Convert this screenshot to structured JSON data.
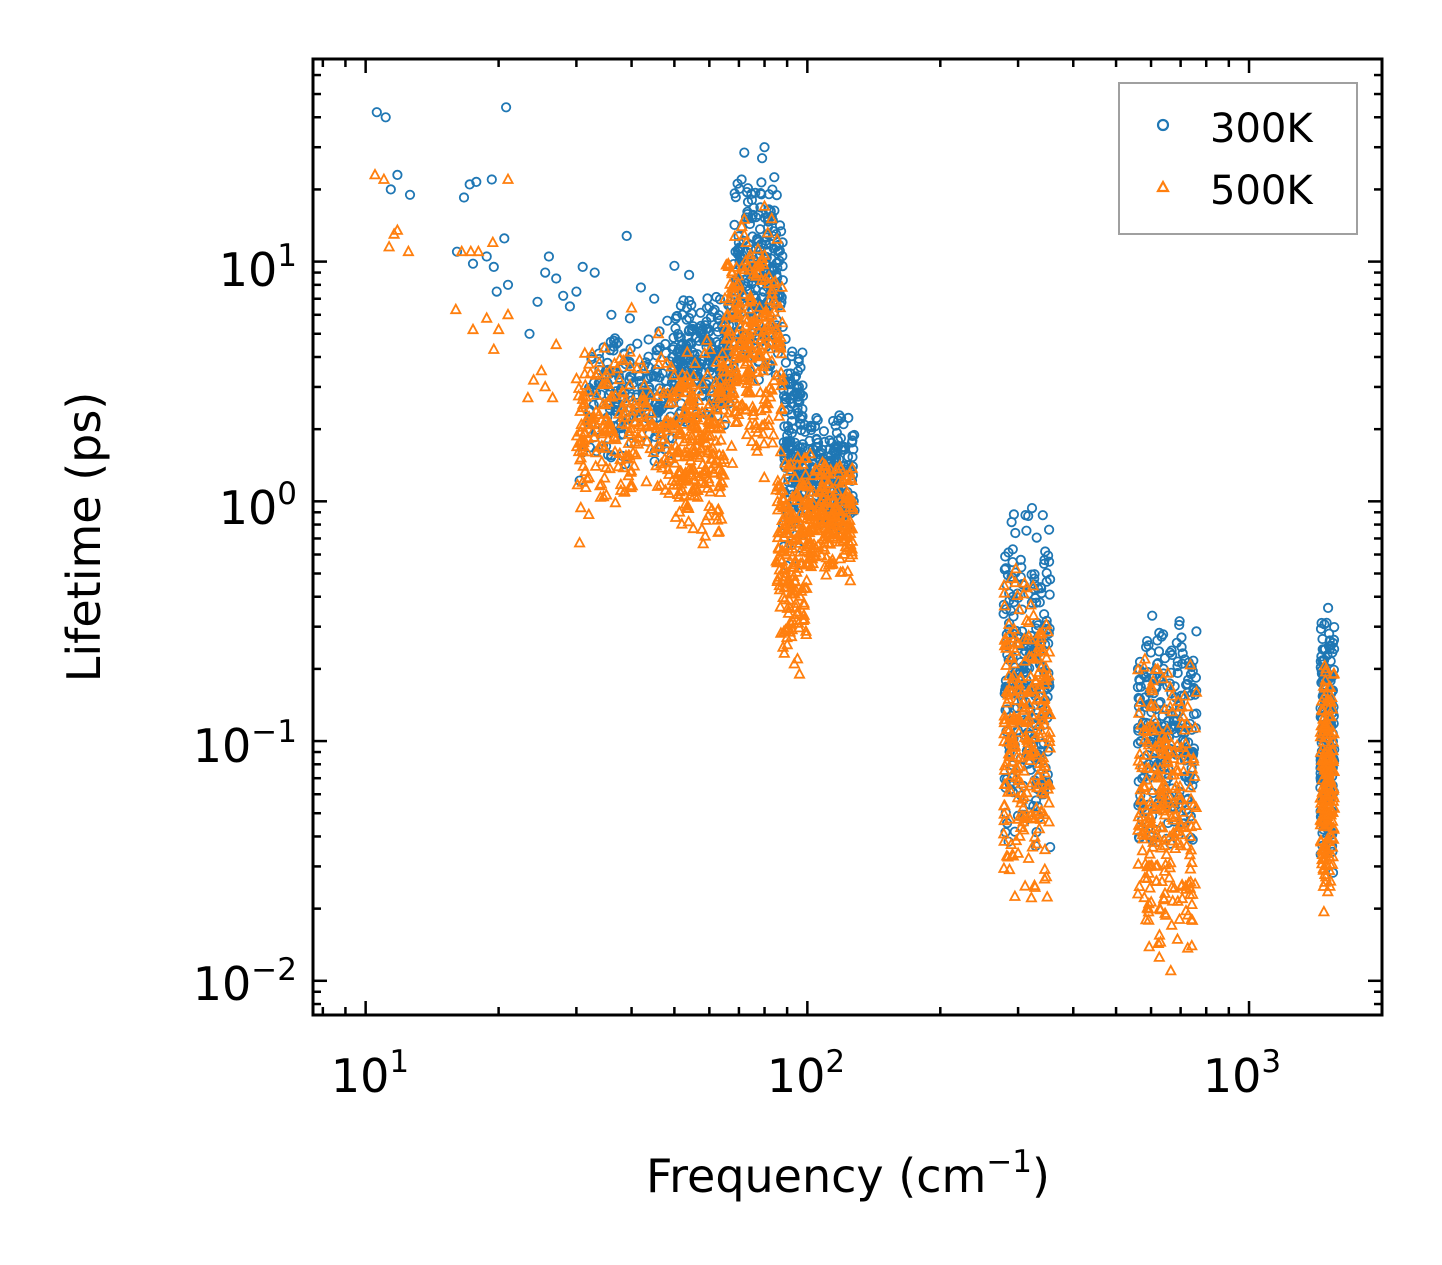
{
  "chart_data": {
    "type": "scatter",
    "xscale": "log",
    "yscale": "log",
    "xlabel": "Frequency (cm",
    "xlabel_sup": "−1",
    "xlabel_end": ")",
    "ylabel": "Lifetime (ps)",
    "xlim": [
      7.6,
      2000
    ],
    "ylim": [
      0.0072,
      70
    ],
    "x_ticks": [
      {
        "value": 10,
        "base": "10",
        "exp": "1"
      },
      {
        "value": 100,
        "base": "10",
        "exp": "2"
      },
      {
        "value": 1000,
        "base": "10",
        "exp": "3"
      }
    ],
    "y_ticks": [
      {
        "value": 0.01,
        "base": "10",
        "exp": "−2"
      },
      {
        "value": 0.1,
        "base": "10",
        "exp": "−1"
      },
      {
        "value": 1,
        "base": "10",
        "exp": "0"
      },
      {
        "value": 10,
        "base": "10",
        "exp": "1"
      }
    ],
    "legend_position": "top-right",
    "series": [
      {
        "name": "300K",
        "marker": "circle",
        "color": "#1f77b4",
        "clusters": [
          {
            "x": [
              32,
              50
            ],
            "y": [
              1.3,
              6
            ],
            "density": 0.8
          },
          {
            "x": [
              50,
              68
            ],
            "y": [
              2,
              8
            ],
            "density": 0.9
          },
          {
            "x": [
              68,
              88
            ],
            "y": [
              3,
              25
            ],
            "density": 1.0
          },
          {
            "x": [
              88,
              98
            ],
            "y": [
              0.5,
              5
            ],
            "density": 0.6
          },
          {
            "x": [
              98,
              128
            ],
            "y": [
              0.7,
              2.4
            ],
            "density": 0.8
          },
          {
            "x": [
              278,
              355
            ],
            "y": [
              0.03,
              1.1
            ],
            "density": 1.0
          },
          {
            "x": [
              560,
              760
            ],
            "y": [
              0.03,
              0.4
            ],
            "density": 1.0
          },
          {
            "x": [
              1450,
              1560
            ],
            "y": [
              0.025,
              0.42
            ],
            "density": 0.7
          }
        ],
        "sparse_points": [
          [
            10.6,
            42
          ],
          [
            11.1,
            40
          ],
          [
            11.4,
            20
          ],
          [
            11.8,
            23
          ],
          [
            12.6,
            19
          ],
          [
            20.8,
            44
          ],
          [
            16.7,
            18.5
          ],
          [
            17.2,
            21
          ],
          [
            17.8,
            21.5
          ],
          [
            19.3,
            22
          ],
          [
            20.6,
            12.5
          ],
          [
            16.1,
            11
          ],
          [
            17.5,
            9.8
          ],
          [
            18.8,
            10.5
          ],
          [
            19.5,
            9.5
          ],
          [
            19.8,
            7.5
          ],
          [
            21,
            8
          ],
          [
            23.5,
            5
          ],
          [
            24.5,
            6.8
          ],
          [
            25.5,
            9
          ],
          [
            26,
            10.5
          ],
          [
            27,
            8.5
          ],
          [
            28,
            7.2
          ],
          [
            29,
            6.5
          ],
          [
            30,
            7.5
          ],
          [
            31,
            9.5
          ],
          [
            33,
            9
          ],
          [
            36,
            6
          ],
          [
            39,
            12.8
          ],
          [
            42,
            7.8
          ],
          [
            45,
            7
          ],
          [
            50,
            9.6
          ],
          [
            54,
            8.8
          ],
          [
            72,
            28.5
          ],
          [
            80,
            30
          ],
          [
            79,
            27
          ],
          [
            71,
            22
          ],
          [
            73,
            19.5
          ],
          [
            30.5,
            1.22
          ],
          [
            31,
            1.6
          ],
          [
            32,
            2.2
          ],
          [
            35,
            3.5
          ]
        ]
      },
      {
        "name": "500K",
        "marker": "triangle",
        "color": "#ff7f0e",
        "clusters": [
          {
            "x": [
              30,
              50
            ],
            "y": [
              0.9,
              4.5
            ],
            "density": 0.9
          },
          {
            "x": [
              50,
              65
            ],
            "y": [
              0.65,
              5
            ],
            "density": 0.9
          },
          {
            "x": [
              65,
              88
            ],
            "y": [
              1.2,
              16
            ],
            "density": 1.0
          },
          {
            "x": [
              85,
              100
            ],
            "y": [
              0.2,
              1.8
            ],
            "density": 0.7
          },
          {
            "x": [
              100,
              127
            ],
            "y": [
              0.45,
              1.6
            ],
            "density": 0.8
          },
          {
            "x": [
              278,
              355
            ],
            "y": [
              0.018,
              0.6
            ],
            "density": 1.0
          },
          {
            "x": [
              560,
              760
            ],
            "y": [
              0.01,
              0.28
            ],
            "density": 1.0
          },
          {
            "x": [
              1450,
              1560
            ],
            "y": [
              0.017,
              0.24
            ],
            "density": 0.7
          }
        ],
        "sparse_points": [
          [
            10.5,
            23
          ],
          [
            11,
            22
          ],
          [
            11.6,
            13
          ],
          [
            11.8,
            13.5
          ],
          [
            11.3,
            11.5
          ],
          [
            12.5,
            11
          ],
          [
            21,
            22
          ],
          [
            16.5,
            11
          ],
          [
            17.3,
            11
          ],
          [
            18,
            11
          ],
          [
            19.4,
            12
          ],
          [
            16,
            6.3
          ],
          [
            17.5,
            5.2
          ],
          [
            18.8,
            5.8
          ],
          [
            19.5,
            4.3
          ],
          [
            20,
            5.2
          ],
          [
            21,
            6
          ],
          [
            23.3,
            2.7
          ],
          [
            24,
            3.2
          ],
          [
            25,
            3.5
          ],
          [
            25.5,
            3
          ],
          [
            26.5,
            2.7
          ],
          [
            27,
            4.5
          ],
          [
            40,
            6.4
          ],
          [
            46,
            5
          ],
          [
            30.5,
            0.67
          ],
          [
            30.7,
            0.94
          ],
          [
            32,
            0.88
          ],
          [
            72,
            15
          ],
          [
            80,
            17
          ],
          [
            96,
            0.19
          ],
          [
            95,
            0.22
          ],
          [
            300,
            0.034
          ],
          [
            665,
            0.011
          ]
        ]
      }
    ]
  }
}
